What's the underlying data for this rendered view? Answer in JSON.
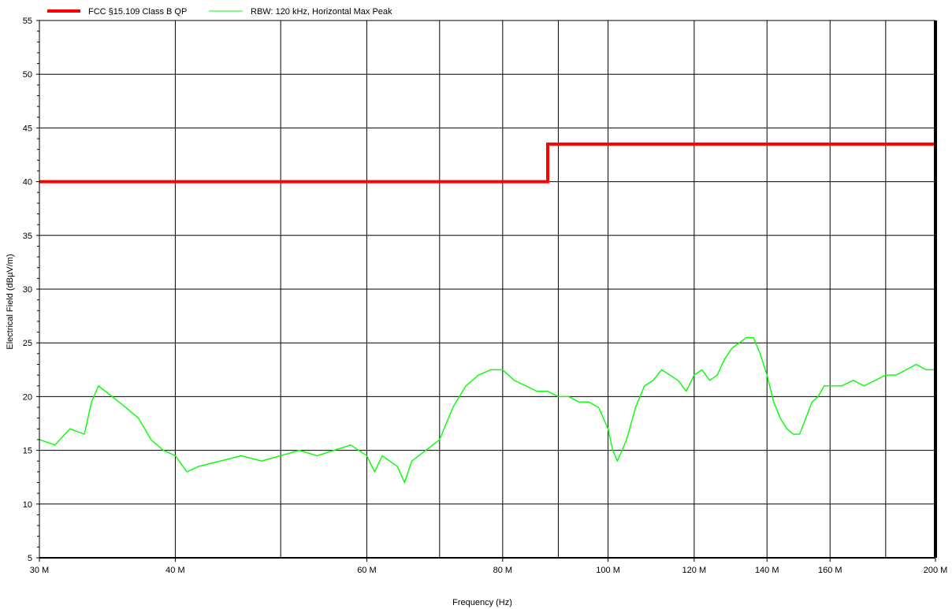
{
  "chart_data": {
    "type": "line",
    "xlabel": "Frequency (Hz)",
    "ylabel": "Electrical Field (dBµV/m)",
    "xscale": "log",
    "xlim": [
      30000000,
      200000000
    ],
    "ylim": [
      5,
      55
    ],
    "grid": true,
    "legend_position": "top-left",
    "x_ticks": [
      {
        "value": 30000000,
        "label": "30 M"
      },
      {
        "value": 40000000,
        "label": "40 M"
      },
      {
        "value": 60000000,
        "label": "60 M"
      },
      {
        "value": 80000000,
        "label": "80 M"
      },
      {
        "value": 100000000,
        "label": "100 M"
      },
      {
        "value": 120000000,
        "label": "120 M"
      },
      {
        "value": 140000000,
        "label": "140 M"
      },
      {
        "value": 160000000,
        "label": "160 M"
      },
      {
        "value": 200000000,
        "label": "200 M"
      }
    ],
    "x_minor_gridlines": [
      50000000,
      70000000,
      90000000,
      180000000
    ],
    "y_ticks": [
      5,
      10,
      15,
      20,
      25,
      30,
      35,
      40,
      45,
      50,
      55
    ],
    "series": [
      {
        "name": "FCC §15.109 Class B QP",
        "color": "#ff0000",
        "x": [
          30000000,
          88000000,
          88000000,
          200000000
        ],
        "y": [
          40,
          40,
          43.5,
          43.5
        ]
      },
      {
        "name": "RBW: 120 kHz, Horizontal Max Peak",
        "color": "#00ff00",
        "x": [
          30000000,
          31000000,
          32000000,
          33000000,
          33500000,
          34000000,
          35000000,
          36000000,
          37000000,
          38000000,
          39000000,
          40000000,
          41000000,
          42000000,
          44000000,
          46000000,
          48000000,
          50000000,
          52000000,
          54000000,
          56000000,
          58000000,
          60000000,
          61000000,
          62000000,
          64000000,
          65000000,
          66000000,
          68000000,
          70000000,
          72000000,
          74000000,
          76000000,
          78000000,
          80000000,
          82000000,
          84000000,
          86000000,
          88000000,
          90000000,
          92000000,
          94000000,
          96000000,
          98000000,
          100000000,
          101000000,
          102000000,
          104000000,
          106000000,
          108000000,
          110000000,
          112000000,
          114000000,
          116000000,
          118000000,
          120000000,
          122000000,
          124000000,
          126000000,
          128000000,
          130000000,
          132000000,
          134000000,
          136000000,
          138000000,
          140000000,
          142000000,
          144000000,
          146000000,
          148000000,
          150000000,
          152000000,
          154000000,
          156000000,
          158000000,
          160000000,
          164000000,
          168000000,
          172000000,
          176000000,
          180000000,
          184000000,
          188000000,
          192000000,
          196000000,
          200000000
        ],
        "y": [
          16,
          15.5,
          17,
          16.5,
          19.5,
          21,
          20,
          19,
          18,
          16,
          15,
          14.5,
          13,
          13.5,
          14,
          14.5,
          14,
          14.5,
          15,
          14.5,
          15,
          15.5,
          14.5,
          13,
          14.5,
          13.5,
          12,
          14,
          15,
          16,
          19,
          21,
          22,
          22.5,
          22.5,
          21.5,
          21,
          20.5,
          20.5,
          20,
          20,
          19.5,
          19.5,
          19,
          17,
          15,
          14,
          16,
          19,
          21,
          21.5,
          22.5,
          22,
          21.5,
          20.5,
          22,
          22.5,
          21.5,
          22,
          23.5,
          24.5,
          25,
          25.5,
          25.5,
          24,
          22,
          19.5,
          18,
          17,
          16.5,
          16.5,
          18,
          19.5,
          20,
          21,
          21,
          21,
          21.5,
          21,
          21.5,
          22,
          22,
          22.5,
          23,
          22.5,
          22.5
        ]
      }
    ]
  }
}
